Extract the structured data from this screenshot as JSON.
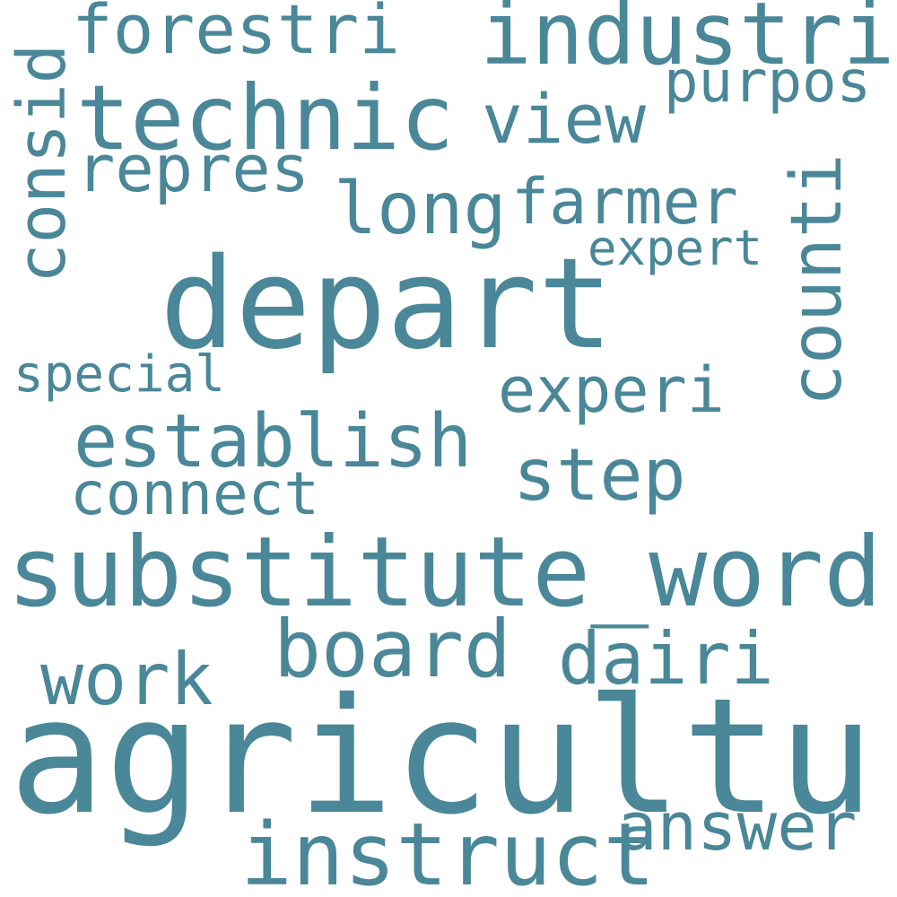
{
  "color": "#4a8798",
  "words": {
    "agricultur": "agricultur",
    "depart": "depart",
    "substitute_word": "substitute_word",
    "technic": "technic",
    "industri": "industri",
    "forestri": "forestri",
    "establish": "establish",
    "instruct": "instruct",
    "board": "board",
    "dairi": "dairi",
    "answer": "answer",
    "work": "work",
    "step": "step",
    "experi": "experi",
    "connect": "connect",
    "repres": "repres",
    "view": "view",
    "long": "long",
    "farmer": "farmer",
    "purpos": "purpos",
    "expert": "expert",
    "special": "special",
    "consid": "consid",
    "counti": "counti"
  }
}
